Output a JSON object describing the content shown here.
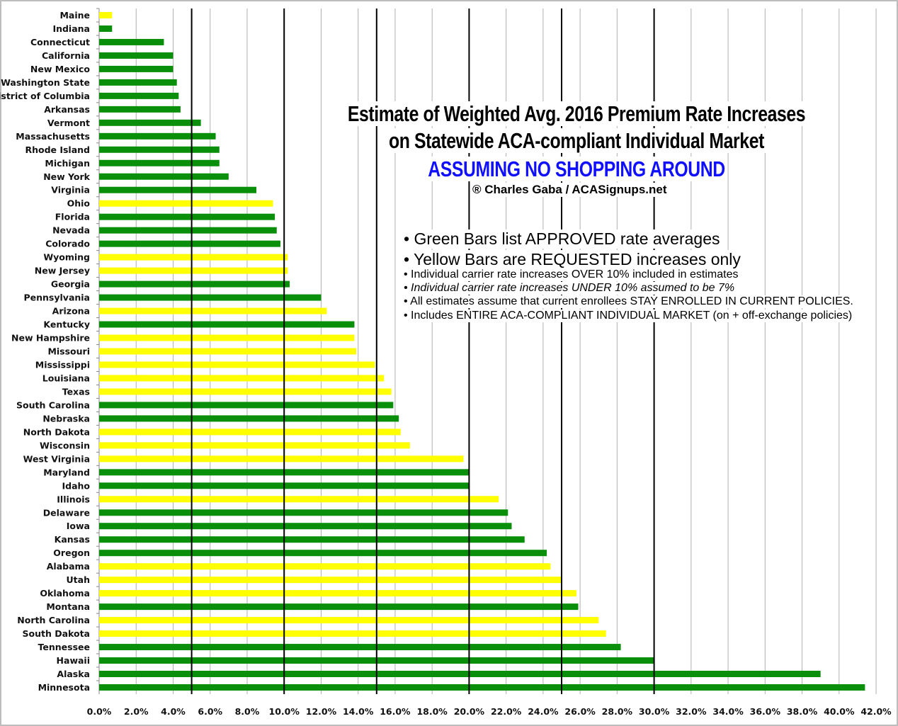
{
  "chart_data": {
    "type": "bar",
    "orientation": "horizontal",
    "title": "Estimate of Weighted Avg. 2016 Premium Rate Increases",
    "title_line2": "on Statewide ACA-compliant Individual Market",
    "subtitle": "ASSUMING NO SHOPPING AROUND",
    "credit": "® Charles Gaba / ACASignups.net",
    "notes": [
      "• Green Bars list APPROVED rate averages",
      "• Yellow Bars are REQUESTED increases only",
      "• Individual carrier rate increases OVER 10% included in estimates",
      "• Individual carrier rate increases UNDER 10% assumed to be 7%",
      "• All estimates assume that current enrollees STAY ENROLLED IN CURRENT POLICIES.",
      "• Includes ENTIRE ACA-COMPLIANT INDIVIDUAL MARKET (on + off-exchange policies)"
    ],
    "xlim": [
      0,
      42
    ],
    "x_ticks": [
      "0.0%",
      "2.0%",
      "4.0%",
      "6.0%",
      "8.0%",
      "10.0%",
      "12.0%",
      "14.0%",
      "16.0%",
      "18.0%",
      "20.0%",
      "22.0%",
      "24.0%",
      "26.0%",
      "28.0%",
      "30.0%",
      "32.0%",
      "34.0%",
      "36.0%",
      "38.0%",
      "40.0%",
      "42.0%"
    ],
    "grid": true,
    "reference_lines": [
      5,
      10,
      15,
      20,
      25,
      30
    ],
    "colors": {
      "approved": "#0a8f0a",
      "requested": "#ffff00",
      "gridline": "#b0b0b0",
      "reference_line": "#000000"
    },
    "categories": [
      "Maine",
      "Indiana",
      "Connecticut",
      "California",
      "New Mexico",
      "Washington State",
      "District of Columbia",
      "Arkansas",
      "Vermont",
      "Massachusetts",
      "Rhode Island",
      "Michigan",
      "New York",
      "Virginia",
      "Ohio",
      "Florida",
      "Nevada",
      "Colorado",
      "Wyoming",
      "New Jersey",
      "Georgia",
      "Pennsylvania",
      "Arizona",
      "Kentucky",
      "New Hampshire",
      "Missouri",
      "Mississippi",
      "Louisiana",
      "Texas",
      "South Carolina",
      "Nebraska",
      "North Dakota",
      "Wisconsin",
      "West Virginia",
      "Maryland",
      "Idaho",
      "Illinois",
      "Delaware",
      "Iowa",
      "Kansas",
      "Oregon",
      "Alabama",
      "Utah",
      "Oklahoma",
      "Montana",
      "North Carolina",
      "South Dakota",
      "Tennessee",
      "Hawaii",
      "Alaska",
      "Minnesota"
    ],
    "values": [
      0.7,
      0.7,
      3.5,
      4.0,
      4.0,
      4.2,
      4.3,
      4.4,
      5.5,
      6.3,
      6.5,
      6.5,
      7.0,
      8.5,
      9.4,
      9.5,
      9.6,
      9.8,
      10.2,
      10.2,
      10.3,
      12.0,
      12.3,
      13.8,
      13.8,
      13.9,
      14.9,
      15.4,
      15.8,
      15.9,
      16.2,
      16.3,
      16.8,
      19.7,
      20.0,
      20.0,
      21.6,
      22.1,
      22.3,
      23.0,
      24.2,
      24.4,
      25.0,
      25.8,
      25.9,
      27.0,
      27.4,
      28.2,
      30.0,
      39.0,
      41.4
    ],
    "status": [
      "requested",
      "approved",
      "approved",
      "approved",
      "approved",
      "approved",
      "approved",
      "approved",
      "approved",
      "approved",
      "approved",
      "approved",
      "approved",
      "approved",
      "requested",
      "approved",
      "approved",
      "approved",
      "requested",
      "requested",
      "approved",
      "approved",
      "requested",
      "approved",
      "requested",
      "requested",
      "requested",
      "requested",
      "requested",
      "approved",
      "approved",
      "requested",
      "requested",
      "requested",
      "approved",
      "approved",
      "requested",
      "approved",
      "approved",
      "approved",
      "approved",
      "requested",
      "requested",
      "requested",
      "approved",
      "requested",
      "requested",
      "approved",
      "approved",
      "approved",
      "approved"
    ]
  }
}
